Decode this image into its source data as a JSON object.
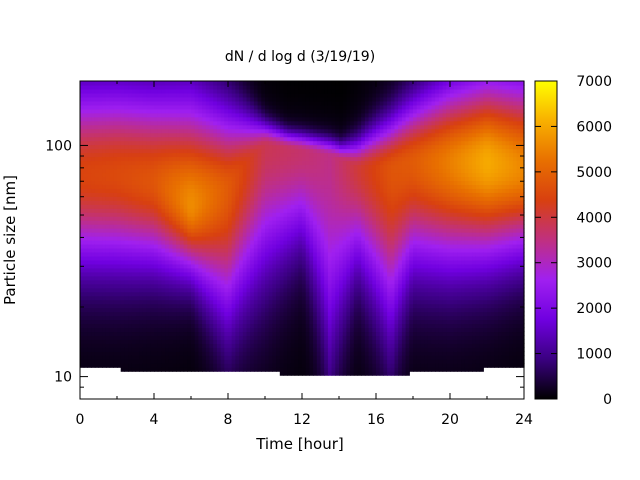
{
  "chart_data": {
    "type": "heatmap",
    "title": "dN / d log d (3/19/19)",
    "xlabel": "Time [hour]",
    "ylabel": "Particle size [nm]",
    "xlim": [
      0,
      24
    ],
    "ylim": [
      8,
      190
    ],
    "y_scale": "log",
    "x_ticks": [
      "0",
      "4",
      "8",
      "12",
      "16",
      "20",
      "24"
    ],
    "y_ticks": [
      "10",
      "100"
    ],
    "colorbar": {
      "range": [
        0,
        7000
      ],
      "ticks": [
        "0",
        "1000",
        "2000",
        "3000",
        "4000",
        "5000",
        "6000",
        "7000"
      ],
      "palette": [
        "#000000",
        "#3a0080",
        "#7000e0",
        "#a020f0",
        "#c03080",
        "#d84010",
        "#e87000",
        "#f8b000",
        "#ffff00"
      ]
    },
    "grid": false,
    "times": [
      0,
      2,
      4,
      6,
      8,
      10,
      12,
      13.5,
      15,
      16.8,
      18,
      20,
      22,
      24
    ],
    "peak_size_nm": [
      75,
      75,
      70,
      55,
      65,
      100,
      95,
      90,
      80,
      80,
      85,
      85,
      85,
      80
    ],
    "peak_conc": [
      4200,
      4300,
      4500,
      5400,
      4600,
      3600,
      3400,
      3200,
      3800,
      4500,
      4600,
      5200,
      5800,
      5300
    ],
    "lower_edge_nm": [
      30,
      30,
      30,
      28,
      18,
      28,
      38,
      13,
      30,
      17,
      30,
      30,
      32,
      34
    ],
    "upper_edge_nm": [
      210,
      210,
      200,
      190,
      160,
      130,
      110,
      100,
      110,
      140,
      170,
      210,
      230,
      230
    ],
    "min_size_nm": [
      10.8,
      10.8,
      10.5,
      10.5,
      10.5,
      10.5,
      10.1,
      10.1,
      10.1,
      10.1,
      10.4,
      10.5,
      10.8,
      11.0
    ]
  }
}
